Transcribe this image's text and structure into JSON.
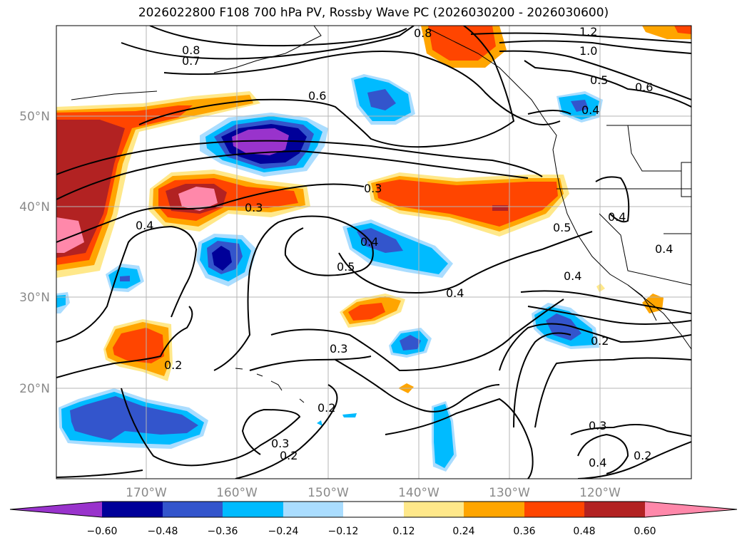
{
  "title": "2026022800 F108 700 hPa PV, Rossby Wave PC (2026030200 - 2026030600)",
  "lat_labels": [
    "50°N",
    "40°N",
    "30°N",
    "20°N"
  ],
  "lon_labels": [
    "170°W",
    "160°W",
    "150°W",
    "140°W",
    "130°W",
    "120°W"
  ],
  "colorbar": {
    "colors": [
      "#9933cc",
      "#000099",
      "#3355cc",
      "#00bbff",
      "#aaddff",
      "#ffffff",
      "#ffe88a",
      "#ffa500",
      "#ff4500",
      "#b22222",
      "#ff88aa"
    ],
    "ticks": [
      "−0.60",
      "−0.48",
      "−0.36",
      "−0.24",
      "−0.12",
      "0.12",
      "0.24",
      "0.36",
      "0.48",
      "0.60"
    ]
  },
  "contour_labels": [
    "0.8",
    "0.7",
    "1.2",
    "1.0",
    "0.8",
    "0.5",
    "0.6",
    "0.6",
    "0.4",
    "0.4",
    "0.3",
    "0.3",
    "0.4",
    "0.4",
    "0.5",
    "0.5",
    "0.4",
    "0.4",
    "0.4",
    "0.3",
    "0.2",
    "0.2",
    "0.2",
    "0.3",
    "0.2",
    "0.3",
    "0.4",
    "0.2"
  ]
}
